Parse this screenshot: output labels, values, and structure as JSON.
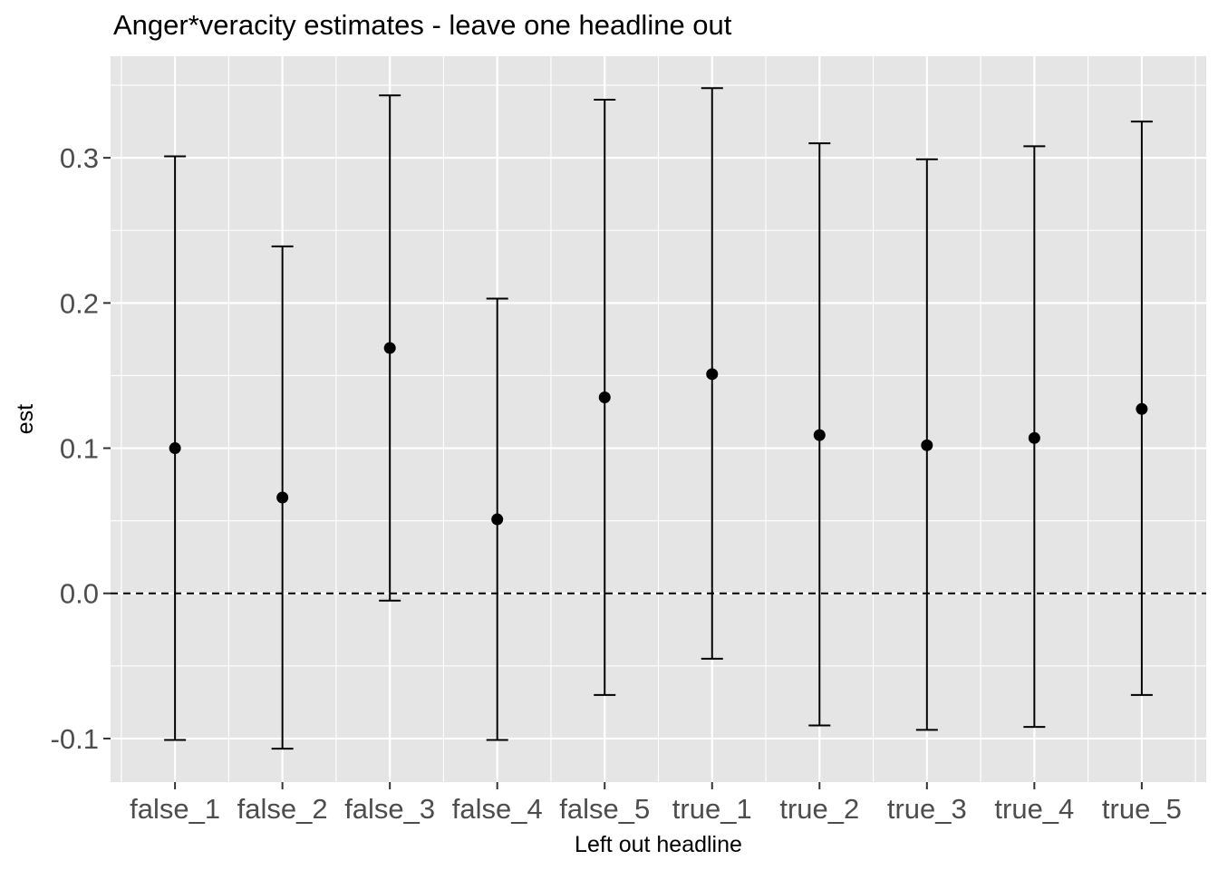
{
  "chart_data": {
    "type": "scatter",
    "subtype": "point-errorbar",
    "title": "Anger*veracity estimates - leave one headline out",
    "xlabel": "Left out headline",
    "ylabel": "est",
    "categories": [
      "false_1",
      "false_2",
      "false_3",
      "false_4",
      "false_5",
      "true_1",
      "true_2",
      "true_3",
      "true_4",
      "true_5"
    ],
    "estimates": [
      0.1,
      0.066,
      0.169,
      0.051,
      0.135,
      0.151,
      0.109,
      0.102,
      0.107,
      0.127
    ],
    "lower": [
      -0.101,
      -0.107,
      -0.005,
      -0.101,
      -0.07,
      -0.045,
      -0.091,
      -0.094,
      -0.092,
      -0.07
    ],
    "upper": [
      0.301,
      0.239,
      0.343,
      0.203,
      0.34,
      0.348,
      0.31,
      0.299,
      0.308,
      0.325
    ],
    "ylim": [
      -0.13,
      0.37
    ],
    "yticks": [
      -0.1,
      0.0,
      0.1,
      0.2,
      0.3
    ],
    "ytick_labels": [
      "-0.1",
      "0.0",
      "0.1",
      "0.2",
      "0.3"
    ],
    "reference_line": {
      "y": 0,
      "style": "dashed"
    },
    "grid": true,
    "colors": {
      "panel": "#e5e5e5",
      "grid": "#ffffff",
      "marks": "#000000",
      "tick_text": "#4d4d4d"
    }
  }
}
